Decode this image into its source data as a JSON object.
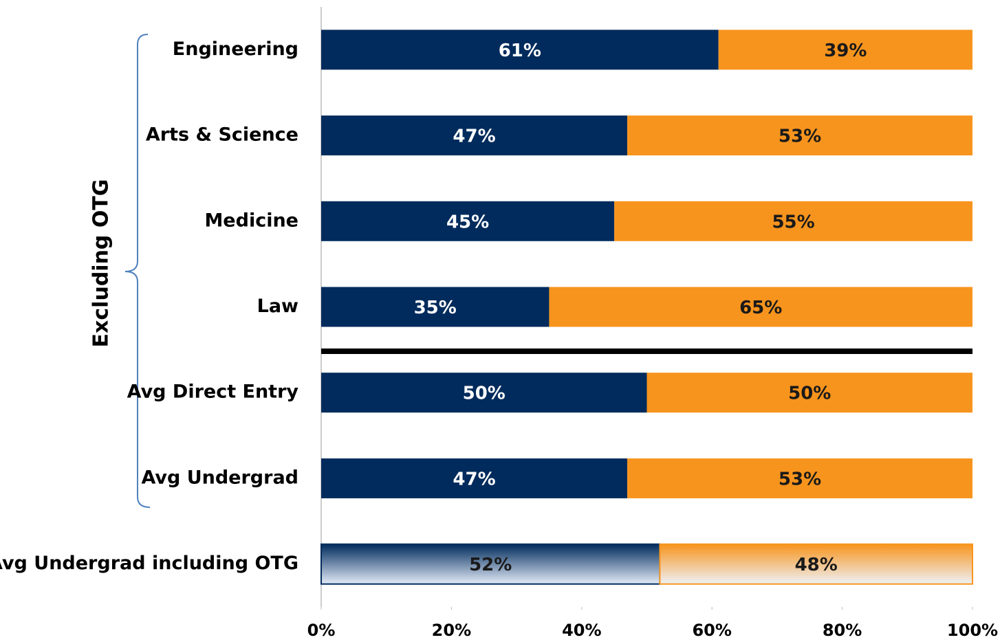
{
  "chart_data": {
    "type": "stacked_barh",
    "annotation": "Excluding OTG",
    "categories": [
      "Engineering",
      "Arts & Science",
      "Medicine",
      "Law",
      "Avg Direct Entry",
      "Avg Undergrad",
      "Avg Undergrad including OTG"
    ],
    "series": [
      {
        "color": "#002b5c",
        "values": [
          61,
          47,
          45,
          35,
          50,
          47,
          52
        ],
        "value_labels": [
          "61%",
          "47%",
          "45%",
          "35%",
          "50%",
          "47%",
          "52%"
        ]
      },
      {
        "color": "#f7941d",
        "values": [
          39,
          53,
          55,
          65,
          50,
          53,
          48
        ],
        "value_labels": [
          "39%",
          "53%",
          "55%",
          "65%",
          "50%",
          "53%",
          "48%"
        ]
      }
    ],
    "xlim": [
      0,
      100
    ],
    "xticks": [
      {
        "value": 0,
        "label": "0%"
      },
      {
        "value": 20,
        "label": "20%"
      },
      {
        "value": 40,
        "label": "40%"
      },
      {
        "value": 60,
        "label": "60%"
      },
      {
        "value": 80,
        "label": "80%"
      },
      {
        "value": 100,
        "label": "100%"
      }
    ],
    "grid": false
  }
}
